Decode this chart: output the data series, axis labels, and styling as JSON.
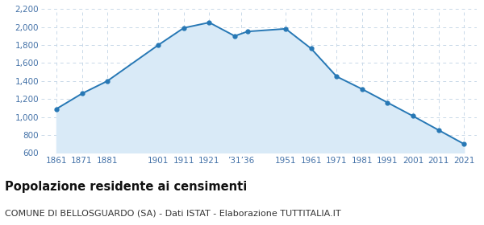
{
  "years": [
    1861,
    1871,
    1881,
    1901,
    1911,
    1921,
    1931,
    1936,
    1951,
    1961,
    1971,
    1981,
    1991,
    2001,
    2011,
    2021
  ],
  "population": [
    1090,
    1260,
    1400,
    1800,
    1990,
    2050,
    1900,
    1950,
    1980,
    1760,
    1450,
    1310,
    1160,
    1010,
    855,
    700
  ],
  "x_tick_positions": [
    1861,
    1871,
    1881,
    1901,
    1911,
    1921,
    1933.5,
    1951,
    1961,
    1971,
    1981,
    1991,
    2001,
    2011,
    2021
  ],
  "x_tick_labels": [
    "1861",
    "1871",
    "1881",
    "1901",
    "1911",
    "1921",
    "’31’36",
    "1951",
    "1961",
    "1971",
    "1981",
    "1991",
    "2001",
    "2011",
    "2021"
  ],
  "ylim": [
    600,
    2200
  ],
  "yticks": [
    600,
    800,
    1000,
    1200,
    1400,
    1600,
    1800,
    2000,
    2200
  ],
  "xlim_left": 1855,
  "xlim_right": 2026,
  "line_color": "#2778b5",
  "fill_color": "#d9eaf7",
  "marker_color": "#2778b5",
  "bg_color": "#ffffff",
  "grid_color": "#c8d8e8",
  "title": "Popolazione residente ai censimenti",
  "subtitle": "COMUNE DI BELLOSGUARDO (SA) - Dati ISTAT - Elaborazione TUTTITALIA.IT",
  "title_fontsize": 10.5,
  "subtitle_fontsize": 8.0,
  "tick_fontsize": 7.5,
  "tick_color": "#4472a8"
}
